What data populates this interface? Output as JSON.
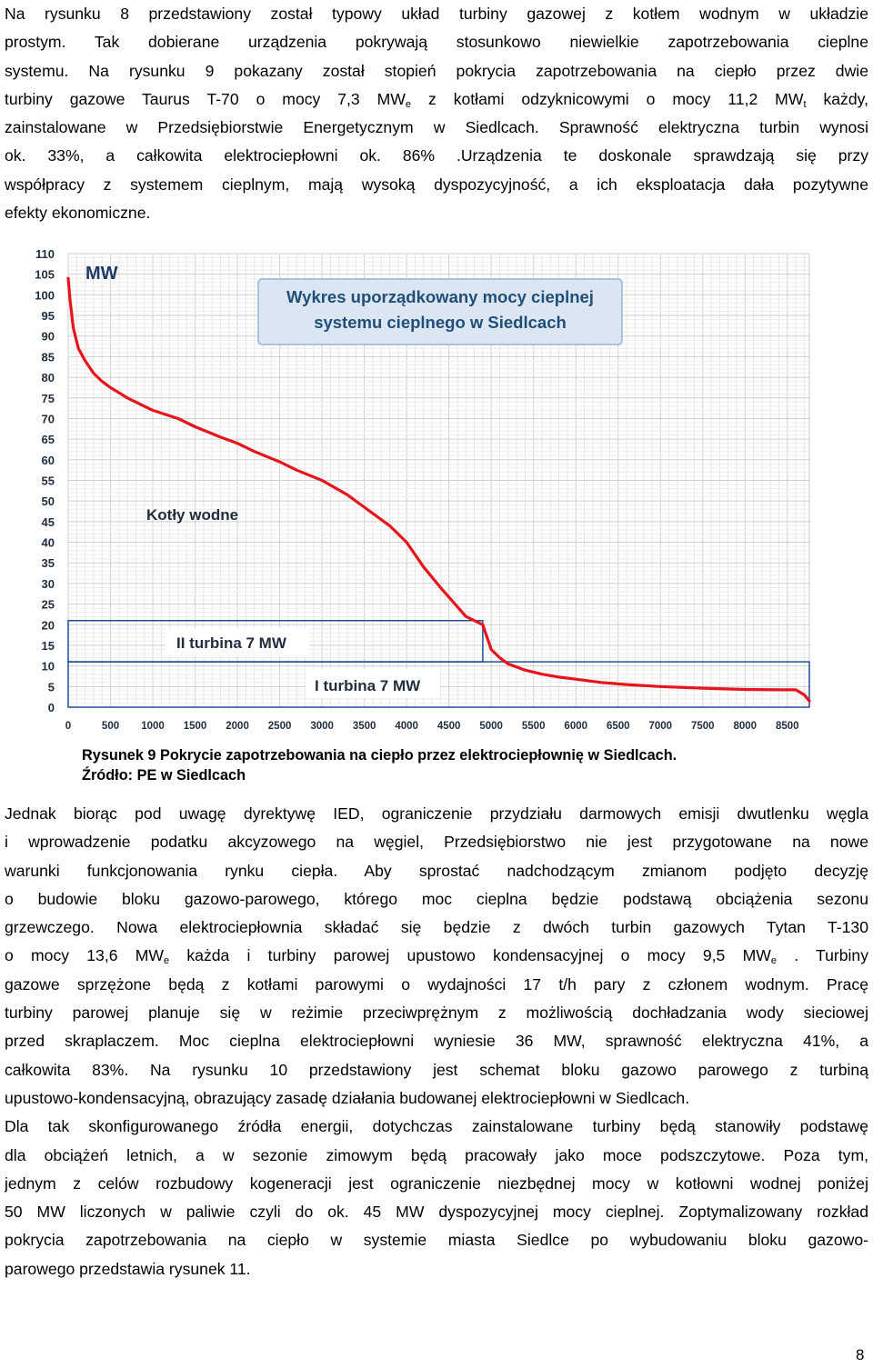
{
  "para1": {
    "l1": "Na rysunku 8 przedstawiony został typowy układ turbiny gazowej z kotłem wodnym w układzie",
    "l2": "prostym. Tak dobierane urządzenia pokrywają stosunkowo niewielkie zapotrzebowania cieplne",
    "l3": "systemu. Na rysunku 9 pokazany został stopień pokrycia zapotrzebowania na ciepło przez dwie",
    "l4a": "turbiny gazowe Taurus T-70 o mocy 7,3 MW",
    "l4sub1": "e",
    "l4b": " z kotłami odzyknicowymi o mocy 11,2 MW",
    "l4sub2": "t",
    "l4c": " każdy,",
    "l5": "zainstalowane w Przedsiębiorstwie Energetycznym w Siedlcach. Sprawność elektryczna turbin wynosi",
    "l6": "ok. 33%, a całkowita elektrociepłowni ok. 86% .Urządzenia te doskonale sprawdzają się przy",
    "l7": "współpracy z systemem cieplnym, mają wysoką dyspozycyjność, a ich eksploatacja dała pozytywne",
    "l8": "efekty ekonomiczne."
  },
  "figure": {
    "unit_label": "MW",
    "title_line1": "Wykres uporządkowany mocy cieplnej",
    "title_line2": "systemu cieplnego w Siedlcach",
    "label_boilers": "Kotły wodne",
    "label_turbine2": "II turbina 7 MW",
    "label_turbine1": "I turbina 7 MW",
    "caption_line1": "Rysunek 9 Pokrycie zapotrzebowania na ciepło przez elektrociepłownię w Siedlcach.",
    "caption_line2": "Źródło: PE w Siedlcach"
  },
  "chart_data": {
    "type": "line",
    "title": "Wykres uporządkowany mocy cieplnej systemu cieplnego w Siedlcach",
    "ylabel": "MW",
    "xlabel": "",
    "xlim": [
      0,
      8760
    ],
    "ylim": [
      0,
      110
    ],
    "xticks": [
      0,
      500,
      1000,
      1500,
      2000,
      2500,
      3000,
      3500,
      4000,
      4500,
      5000,
      5500,
      6000,
      6500,
      7000,
      7500,
      8000,
      8500
    ],
    "yticks": [
      0,
      5,
      10,
      15,
      20,
      25,
      30,
      35,
      40,
      45,
      50,
      55,
      60,
      65,
      70,
      75,
      80,
      85,
      90,
      95,
      100,
      105,
      110
    ],
    "grid": true,
    "line_color": "#e8141b",
    "series": [
      {
        "x": [
          0,
          20,
          60,
          120,
          200,
          300,
          400,
          500,
          700,
          1000,
          1300,
          1500,
          1800,
          2000,
          2200,
          2500,
          2700,
          3000,
          3300,
          3500,
          3800,
          4000,
          4200,
          4400,
          4700,
          4900,
          4950,
          5000,
          5100,
          5200,
          5400,
          5600,
          5800,
          6000,
          6300,
          6600,
          7000,
          7500,
          8000,
          8400,
          8600,
          8700,
          8760
        ],
        "y": [
          104,
          99,
          92,
          87,
          84,
          81,
          79,
          77.5,
          75,
          72,
          70,
          68,
          65.5,
          64,
          62,
          59.5,
          57.5,
          55,
          51.5,
          48.5,
          44,
          40,
          34,
          29,
          22,
          20,
          17,
          14,
          12,
          10.5,
          9,
          8,
          7.3,
          6.8,
          6,
          5.5,
          5,
          4.6,
          4.3,
          4.2,
          4.2,
          3,
          1.5
        ]
      }
    ],
    "regions": [
      {
        "label": "II turbina 7 MW",
        "x": [
          0,
          4900
        ],
        "y": [
          11,
          21
        ]
      },
      {
        "label": "I turbina 7 MW",
        "x": [
          0,
          8760
        ],
        "y": [
          0,
          11
        ]
      }
    ]
  },
  "para2": {
    "l1": "Jednak biorąc pod uwagę dyrektywę IED, ograniczenie przydziału darmowych emisji dwutlenku węgla",
    "l2": "i wprowadzenie podatku akcyzowego na węgiel, Przedsiębiorstwo nie jest przygotowane na nowe",
    "l3": "warunki funkcjonowania rynku ciepła. Aby sprostać nadchodzącym zmianom podjęto decyzję",
    "l4": "o budowie bloku gazowo-parowego, którego moc cieplna będzie podstawą obciążenia sezonu",
    "l5": "grzewczego. Nowa elektrociepłownia składać się będzie z dwóch turbin gazowych Tytan T-130",
    "l6a": "o mocy 13,6 MW",
    "l6sub1": "e",
    "l6b": " każda i turbiny parowej upustowo kondensacyjnej o mocy 9,5 MW",
    "l6sub2": "e",
    "l6c": " . Turbiny",
    "l7": "gazowe sprzężone będą z kotłami parowymi o wydajności 17 t/h pary z członem wodnym. Pracę",
    "l8": "turbiny parowej planuje się w reżimie przeciwprężnym z możliwością dochładzania wody sieciowej",
    "l9": "przed skraplaczem. Moc cieplna elektrociepłowni wyniesie 36 MW, sprawność elektryczna 41%, a",
    "l10": "całkowita 83%. Na rysunku 10 przedstawiony jest schemat bloku gazowo parowego z turbiną",
    "l11": "upustowo-kondensacyjną, obrazujący zasadę działania budowanej elektrociepłowni w Siedlcach.",
    "l12": "Dla tak skonfigurowanego źródła energii, dotychczas zainstalowane turbiny będą stanowiły podstawę",
    "l13": "dla obciążeń letnich, a w sezonie zimowym będą pracowały jako moce podszczytowe. Poza tym,",
    "l14": "jednym z celów rozbudowy kogeneracji jest ograniczenie niezbędnej mocy w kotłowni wodnej poniżej",
    "l15": "50 MW liczonych w paliwie czyli do ok. 45 MW dyspozycyjnej mocy cieplnej. Zoptymalizowany rozkład",
    "l16": "pokrycia zapotrzebowania na ciepło w systemie miasta Siedlce po wybudowaniu bloku gazowo-",
    "l17": "parowego przedstawia rysunek 11."
  },
  "page_number": "8"
}
